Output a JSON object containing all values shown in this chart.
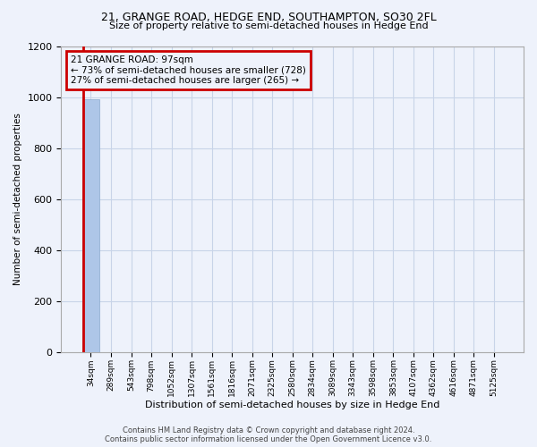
{
  "title_line1": "21, GRANGE ROAD, HEDGE END, SOUTHAMPTON, SO30 2FL",
  "title_line2": "Size of property relative to semi-detached houses in Hedge End",
  "xlabel": "Distribution of semi-detached houses by size in Hedge End",
  "ylabel": "Number of semi-detached properties",
  "property_label": "21 GRANGE ROAD: 97sqm",
  "smaller_pct": "73% of semi-detached houses are smaller (728)",
  "larger_pct": "27% of semi-detached houses are larger (265)",
  "property_size": 97,
  "footer_line1": "Contains HM Land Registry data © Crown copyright and database right 2024.",
  "footer_line2": "Contains public sector information licensed under the Open Government Licence v3.0.",
  "bin_labels": [
    "34sqm",
    "289sqm",
    "543sqm",
    "798sqm",
    "1052sqm",
    "1307sqm",
    "1561sqm",
    "1816sqm",
    "2071sqm",
    "2325sqm",
    "2580sqm",
    "2834sqm",
    "3089sqm",
    "3343sqm",
    "3598sqm",
    "3853sqm",
    "4107sqm",
    "4362sqm",
    "4616sqm",
    "4871sqm",
    "5125sqm"
  ],
  "bar_values": [
    993,
    0,
    0,
    0,
    0,
    0,
    0,
    0,
    0,
    0,
    0,
    0,
    0,
    0,
    0,
    0,
    0,
    0,
    0,
    0,
    0
  ],
  "bar_color": "#aec6e8",
  "highlight_bar_index": 0,
  "highlight_color": "#cc0000",
  "ylim": [
    0,
    1200
  ],
  "yticks": [
    0,
    200,
    400,
    600,
    800,
    1000,
    1200
  ],
  "annotation_box_color": "#cc0000",
  "grid_color": "#c8d4e8",
  "background_color": "#eef2fb"
}
